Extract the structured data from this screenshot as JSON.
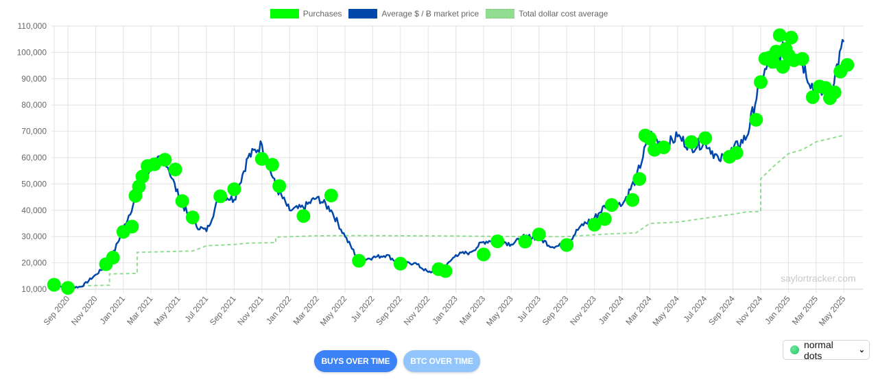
{
  "legend": {
    "purchases": {
      "label": "Purchases",
      "color": "#00ff00"
    },
    "price": {
      "label": "Average $ / Ƀ market price",
      "color": "#0047ab"
    },
    "dca": {
      "label": "Total dollar cost average",
      "color": "#90dc90"
    }
  },
  "watermark": "saylortracker.com",
  "buttons": {
    "buys_over_time": "BUYS OVER TIME",
    "btc_over_time": "BTC OVER TIME"
  },
  "dot_mode_select": {
    "value": "normal dots",
    "icon": "green-dot-icon"
  },
  "chart_data": {
    "type": "line",
    "title": "",
    "xlabel": "",
    "ylabel": "",
    "ylim": [
      10000,
      110000
    ],
    "grid": true,
    "legend_position": "top",
    "y_ticks": [
      "10,000",
      "20,000",
      "30,000",
      "40,000",
      "50,000",
      "60,000",
      "70,000",
      "80,000",
      "90,000",
      "100,000",
      "110,000"
    ],
    "x_ticks": [
      "Sep 2020",
      "Nov 2020",
      "Jan 2021",
      "Mar 2021",
      "May 2021",
      "Jul 2021",
      "Sep 2021",
      "Nov 2021",
      "Jan 2022",
      "Mar 2022",
      "May 2022",
      "Jul 2022",
      "Sep 2022",
      "Nov 2022",
      "Jan 2023",
      "Mar 2023",
      "May 2023",
      "Jul 2023",
      "Sep 2023",
      "Nov 2023",
      "Jan 2024",
      "Mar 2024",
      "May 2024",
      "Jul 2024",
      "Sep 2024",
      "Nov 2024",
      "Jan 2025",
      "Mar 2025",
      "May 2025"
    ],
    "series": [
      {
        "name": "Average $ / Ƀ market price",
        "type": "line",
        "points": [
          [
            "2020-08",
            11500
          ],
          [
            "2020-09",
            10500
          ],
          [
            "2020-10",
            11000
          ],
          [
            "2020-11",
            15500
          ],
          [
            "2020-12",
            20000
          ],
          [
            "2021-01",
            33000
          ],
          [
            "2021-02",
            46000
          ],
          [
            "2021-03",
            57000
          ],
          [
            "2021-04",
            60000
          ],
          [
            "2021-05",
            45000
          ],
          [
            "2021-06",
            35000
          ],
          [
            "2021-07",
            32000
          ],
          [
            "2021-08",
            46000
          ],
          [
            "2021-09",
            44000
          ],
          [
            "2021-10",
            60000
          ],
          [
            "2021-11",
            65000
          ],
          [
            "2021-12",
            49000
          ],
          [
            "2022-01",
            40000
          ],
          [
            "2022-02",
            41000
          ],
          [
            "2022-03",
            45000
          ],
          [
            "2022-04",
            40000
          ],
          [
            "2022-05",
            30000
          ],
          [
            "2022-06",
            21000
          ],
          [
            "2022-07",
            22000
          ],
          [
            "2022-08",
            23000
          ],
          [
            "2022-09",
            19500
          ],
          [
            "2022-10",
            20000
          ],
          [
            "2022-11",
            16500
          ],
          [
            "2022-12",
            17000
          ],
          [
            "2023-01",
            23000
          ],
          [
            "2023-02",
            24000
          ],
          [
            "2023-03",
            28000
          ],
          [
            "2023-04",
            29000
          ],
          [
            "2023-05",
            27000
          ],
          [
            "2023-06",
            30000
          ],
          [
            "2023-07",
            29500
          ],
          [
            "2023-08",
            26000
          ],
          [
            "2023-09",
            27000
          ],
          [
            "2023-10",
            34000
          ],
          [
            "2023-11",
            37000
          ],
          [
            "2023-12",
            43000
          ],
          [
            "2024-01",
            42000
          ],
          [
            "2024-02",
            52000
          ],
          [
            "2024-03",
            69000
          ],
          [
            "2024-04",
            64000
          ],
          [
            "2024-05",
            68000
          ],
          [
            "2024-06",
            64000
          ],
          [
            "2024-07",
            66000
          ],
          [
            "2024-08",
            59000
          ],
          [
            "2024-09",
            63000
          ],
          [
            "2024-10",
            68000
          ],
          [
            "2024-11",
            90000
          ],
          [
            "2024-12",
            98000
          ],
          [
            "2025-01",
            102000
          ],
          [
            "2025-02",
            96000
          ],
          [
            "2025-03",
            84000
          ],
          [
            "2025-04",
            85000
          ],
          [
            "2025-05",
            104000
          ]
        ]
      },
      {
        "name": "Total dollar cost average",
        "type": "line",
        "style": "dashed",
        "points": [
          [
            "2020-10",
            11300
          ],
          [
            "2020-12",
            11500
          ],
          [
            "2020-12",
            15800
          ],
          [
            "2021-02",
            16000
          ],
          [
            "2021-02",
            24000
          ],
          [
            "2021-06",
            24500
          ],
          [
            "2021-07",
            26500
          ],
          [
            "2021-09",
            27000
          ],
          [
            "2021-10",
            27500
          ],
          [
            "2021-12",
            27700
          ],
          [
            "2021-12",
            29800
          ],
          [
            "2022-03",
            30300
          ],
          [
            "2022-06",
            30400
          ],
          [
            "2023-01",
            30200
          ],
          [
            "2023-06",
            30000
          ],
          [
            "2023-09",
            30000
          ],
          [
            "2023-12",
            31000
          ],
          [
            "2024-02",
            31400
          ],
          [
            "2024-03",
            35000
          ],
          [
            "2024-05",
            35500
          ],
          [
            "2024-07",
            37000
          ],
          [
            "2024-09",
            38500
          ],
          [
            "2024-10",
            39400
          ],
          [
            "2024-11",
            39500
          ],
          [
            "2024-11",
            52000
          ],
          [
            "2024-12",
            57000
          ],
          [
            "2025-01",
            61500
          ],
          [
            "2025-02",
            63000
          ],
          [
            "2025-03",
            66000
          ],
          [
            "2025-05",
            68500
          ]
        ]
      },
      {
        "name": "Purchases",
        "type": "scatter",
        "points": [
          [
            "2020-08",
            11700
          ],
          [
            "2020-09",
            10500
          ],
          [
            "2020-12",
            19500
          ],
          [
            "2020-12",
            22000
          ],
          [
            "2021-01",
            31800
          ],
          [
            "2021-02",
            33800
          ],
          [
            "2021-02",
            45500
          ],
          [
            "2021-02",
            49000
          ],
          [
            "2021-02",
            52800
          ],
          [
            "2021-03",
            56800
          ],
          [
            "2021-03",
            57500
          ],
          [
            "2021-04",
            59200
          ],
          [
            "2021-05",
            55500
          ],
          [
            "2021-05",
            43500
          ],
          [
            "2021-06",
            37300
          ],
          [
            "2021-08",
            45300
          ],
          [
            "2021-09",
            48000
          ],
          [
            "2021-11",
            59500
          ],
          [
            "2021-12",
            57300
          ],
          [
            "2021-12",
            49200
          ],
          [
            "2022-02",
            37800
          ],
          [
            "2022-04",
            45600
          ],
          [
            "2022-06",
            20800
          ],
          [
            "2022-09",
            19700
          ],
          [
            "2022-12",
            17600
          ],
          [
            "2022-12",
            16900
          ],
          [
            "2023-03",
            23200
          ],
          [
            "2023-04",
            28200
          ],
          [
            "2023-06",
            28100
          ],
          [
            "2023-07",
            30800
          ],
          [
            "2023-09",
            26800
          ],
          [
            "2023-11",
            34500
          ],
          [
            "2023-12",
            36700
          ],
          [
            "2023-12",
            42000
          ],
          [
            "2024-02",
            43900
          ],
          [
            "2024-02",
            51900
          ],
          [
            "2024-03",
            68400
          ],
          [
            "2024-03",
            67300
          ],
          [
            "2024-03",
            63000
          ],
          [
            "2024-04",
            63900
          ],
          [
            "2024-06",
            65900
          ],
          [
            "2024-07",
            67400
          ],
          [
            "2024-09",
            60300
          ],
          [
            "2024-09",
            61800
          ],
          [
            "2024-11",
            74400
          ],
          [
            "2024-11",
            88700
          ],
          [
            "2024-11",
            97600
          ],
          [
            "2024-12",
            98000
          ],
          [
            "2024-12",
            96400
          ],
          [
            "2024-12",
            100300
          ],
          [
            "2024-12",
            106500
          ],
          [
            "2025-01",
            94500
          ],
          [
            "2025-01",
            101300
          ],
          [
            "2025-01",
            99000
          ],
          [
            "2025-01",
            105600
          ],
          [
            "2025-01",
            97000
          ],
          [
            "2025-02",
            97500
          ],
          [
            "2025-03",
            83000
          ],
          [
            "2025-03",
            87000
          ],
          [
            "2025-04",
            86500
          ],
          [
            "2025-04",
            82600
          ],
          [
            "2025-04",
            84800
          ],
          [
            "2025-05",
            92700
          ],
          [
            "2025-05",
            95200
          ]
        ]
      }
    ]
  }
}
